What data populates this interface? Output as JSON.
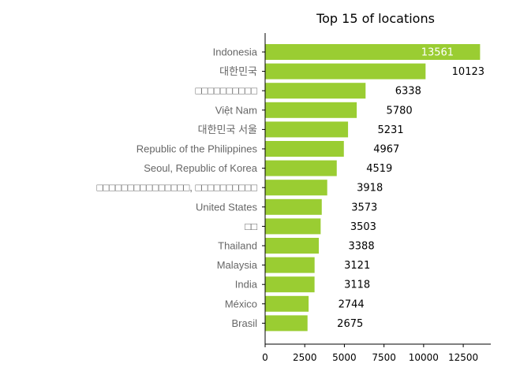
{
  "chart_data": {
    "type": "bar",
    "orientation": "horizontal",
    "title": "Top 15 of locations",
    "xlabel": "",
    "ylabel": "",
    "categories": [
      "Indonesia",
      "대한민국",
      "□□□□□□□□□□",
      "Việt Nam",
      "대한민국 서울",
      "Republic of the Philippines",
      "Seoul, Republic of Korea",
      "□□□□□□□□□□□□□□□, □□□□□□□□□□",
      "United States",
      "□□",
      "Thailand",
      "Malaysia",
      "India",
      "México",
      "Brasil"
    ],
    "values": [
      13561,
      10123,
      6338,
      5780,
      5231,
      4967,
      4519,
      3918,
      3573,
      3503,
      3388,
      3121,
      3118,
      2744,
      2675
    ],
    "xlim": [
      0,
      14238
    ],
    "xticks": [
      0,
      2500,
      5000,
      7500,
      10000,
      12500
    ],
    "bar_color": "#9acd32",
    "grid": false,
    "legend": "none"
  }
}
